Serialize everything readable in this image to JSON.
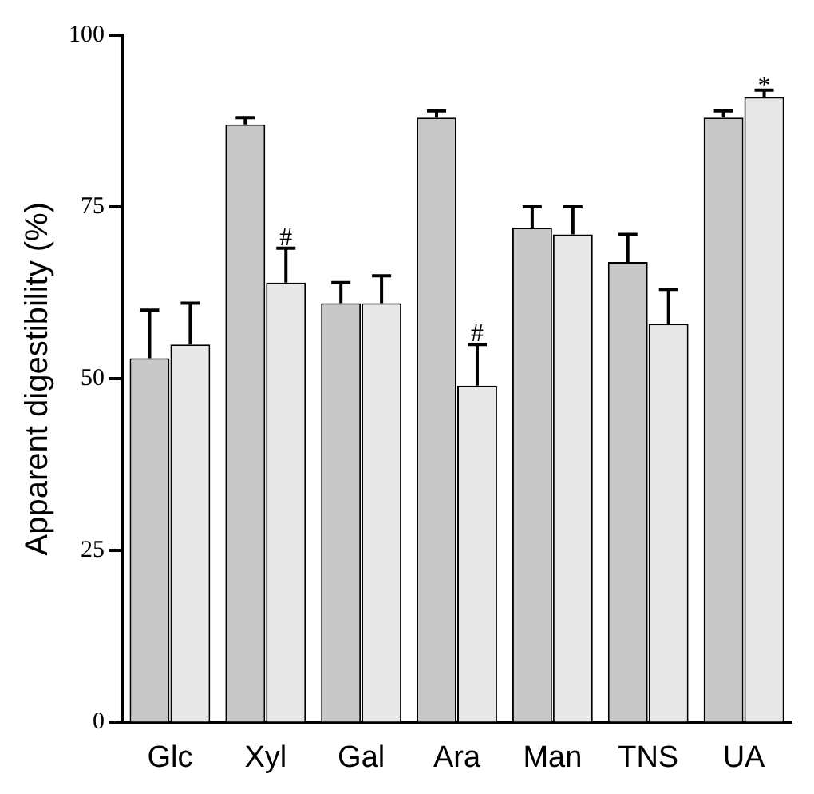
{
  "chart_data": {
    "type": "bar",
    "ylabel": "Apparent digestibility (%)",
    "categories": [
      "Glc",
      "Xyl",
      "Gal",
      "Ara",
      "Man",
      "TNS",
      "UA"
    ],
    "series": [
      {
        "color": "#c8c8c8",
        "values": [
          53,
          87,
          61,
          88,
          72,
          67,
          88
        ],
        "errors": [
          7,
          1,
          3,
          1,
          3,
          4,
          1
        ]
      },
      {
        "color": "#e8e8e8",
        "values": [
          55,
          64,
          61,
          49,
          71,
          58,
          91
        ],
        "errors": [
          6,
          5,
          4,
          6,
          4,
          5,
          1
        ]
      }
    ],
    "ylim": [
      0,
      100
    ],
    "yticks": [
      0,
      25,
      50,
      75,
      100
    ],
    "grid": false,
    "legend": false,
    "annotations": [
      {
        "text": "#",
        "x": "Xyl",
        "y": 64
      },
      {
        "text": "#",
        "x": "Ara",
        "y": 49
      },
      {
        "text": "*",
        "x": "UA",
        "y": 91
      }
    ]
  }
}
